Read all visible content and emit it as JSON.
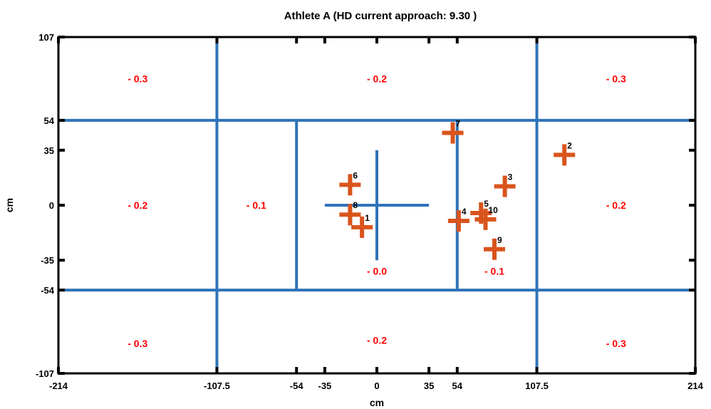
{
  "chart_data": {
    "type": "scatter",
    "title": "Athlete A (HD current approach: 9.30 )",
    "xlabel": "cm",
    "ylabel": "cm",
    "xlim": [
      -214,
      214
    ],
    "ylim": [
      -107,
      107
    ],
    "xticks": [
      {
        "value": -214,
        "label": "-214"
      },
      {
        "value": -107.5,
        "label": "-107.5"
      },
      {
        "value": -54,
        "label": "-54"
      },
      {
        "value": -35,
        "label": "-35"
      },
      {
        "value": 0,
        "label": "0"
      },
      {
        "value": 35,
        "label": "35"
      },
      {
        "value": 54,
        "label": "54"
      },
      {
        "value": 107.5,
        "label": "107.5"
      },
      {
        "value": 214,
        "label": "214"
      }
    ],
    "yticks": [
      {
        "value": 107,
        "label": "107"
      },
      {
        "value": 54,
        "label": "54"
      },
      {
        "value": 35,
        "label": "35"
      },
      {
        "value": 0,
        "label": "0"
      },
      {
        "value": -35,
        "label": "-35"
      },
      {
        "value": -54,
        "label": "-54"
      },
      {
        "value": -107,
        "label": "-107"
      }
    ],
    "zone_lines": [
      {
        "orientation": "vertical",
        "x": -107.5,
        "y1": -107,
        "y2": 107
      },
      {
        "orientation": "vertical",
        "x": 107.5,
        "y1": -107,
        "y2": 107
      },
      {
        "orientation": "horizontal",
        "y": 54,
        "x1": -214,
        "x2": 214
      },
      {
        "orientation": "horizontal",
        "y": -54,
        "x1": -214,
        "x2": 214
      },
      {
        "orientation": "vertical",
        "x": -54,
        "y1": -54,
        "y2": 54
      },
      {
        "orientation": "vertical",
        "x": 54,
        "y1": -54,
        "y2": 54
      },
      {
        "orientation": "vertical",
        "x": 0,
        "y1": -35,
        "y2": 35
      },
      {
        "orientation": "horizontal",
        "y": 0,
        "x1": -35,
        "x2": 35
      }
    ],
    "zone_labels": [
      {
        "x": -160.75,
        "y": 80.5,
        "text": "- 0.3"
      },
      {
        "x": 0,
        "y": 80.5,
        "text": "- 0.2"
      },
      {
        "x": 160.75,
        "y": 80.5,
        "text": "- 0.3"
      },
      {
        "x": -160.75,
        "y": 0,
        "text": "- 0.2"
      },
      {
        "x": -81,
        "y": 0,
        "text": "- 0.1"
      },
      {
        "x": 0,
        "y": -42,
        "text": "- 0.0"
      },
      {
        "x": 79,
        "y": -42,
        "text": "- 0.1"
      },
      {
        "x": 160.75,
        "y": 0,
        "text": "- 0.2"
      },
      {
        "x": -160.75,
        "y": -88,
        "text": "- 0.3"
      },
      {
        "x": 0,
        "y": -86,
        "text": "- 0.2"
      },
      {
        "x": 160.75,
        "y": -88,
        "text": "- 0.3"
      }
    ],
    "points": [
      {
        "label": "1",
        "x": -10,
        "y": -14
      },
      {
        "label": "2",
        "x": 126,
        "y": 32
      },
      {
        "label": "3",
        "x": 86,
        "y": 12
      },
      {
        "label": "4",
        "x": 55,
        "y": -10
      },
      {
        "label": "5",
        "x": 70,
        "y": -5
      },
      {
        "label": "6",
        "x": -18,
        "y": 13
      },
      {
        "label": "7",
        "x": 51,
        "y": 46
      },
      {
        "label": "8",
        "x": -18,
        "y": -6
      },
      {
        "label": "9",
        "x": 79,
        "y": -28
      },
      {
        "label": "10",
        "x": 73,
        "y": -9
      }
    ],
    "colors": {
      "zone_line": "#2f73b8",
      "marker": "#d9541c",
      "zone_label": "#ff0000",
      "axes": "#000000"
    }
  }
}
